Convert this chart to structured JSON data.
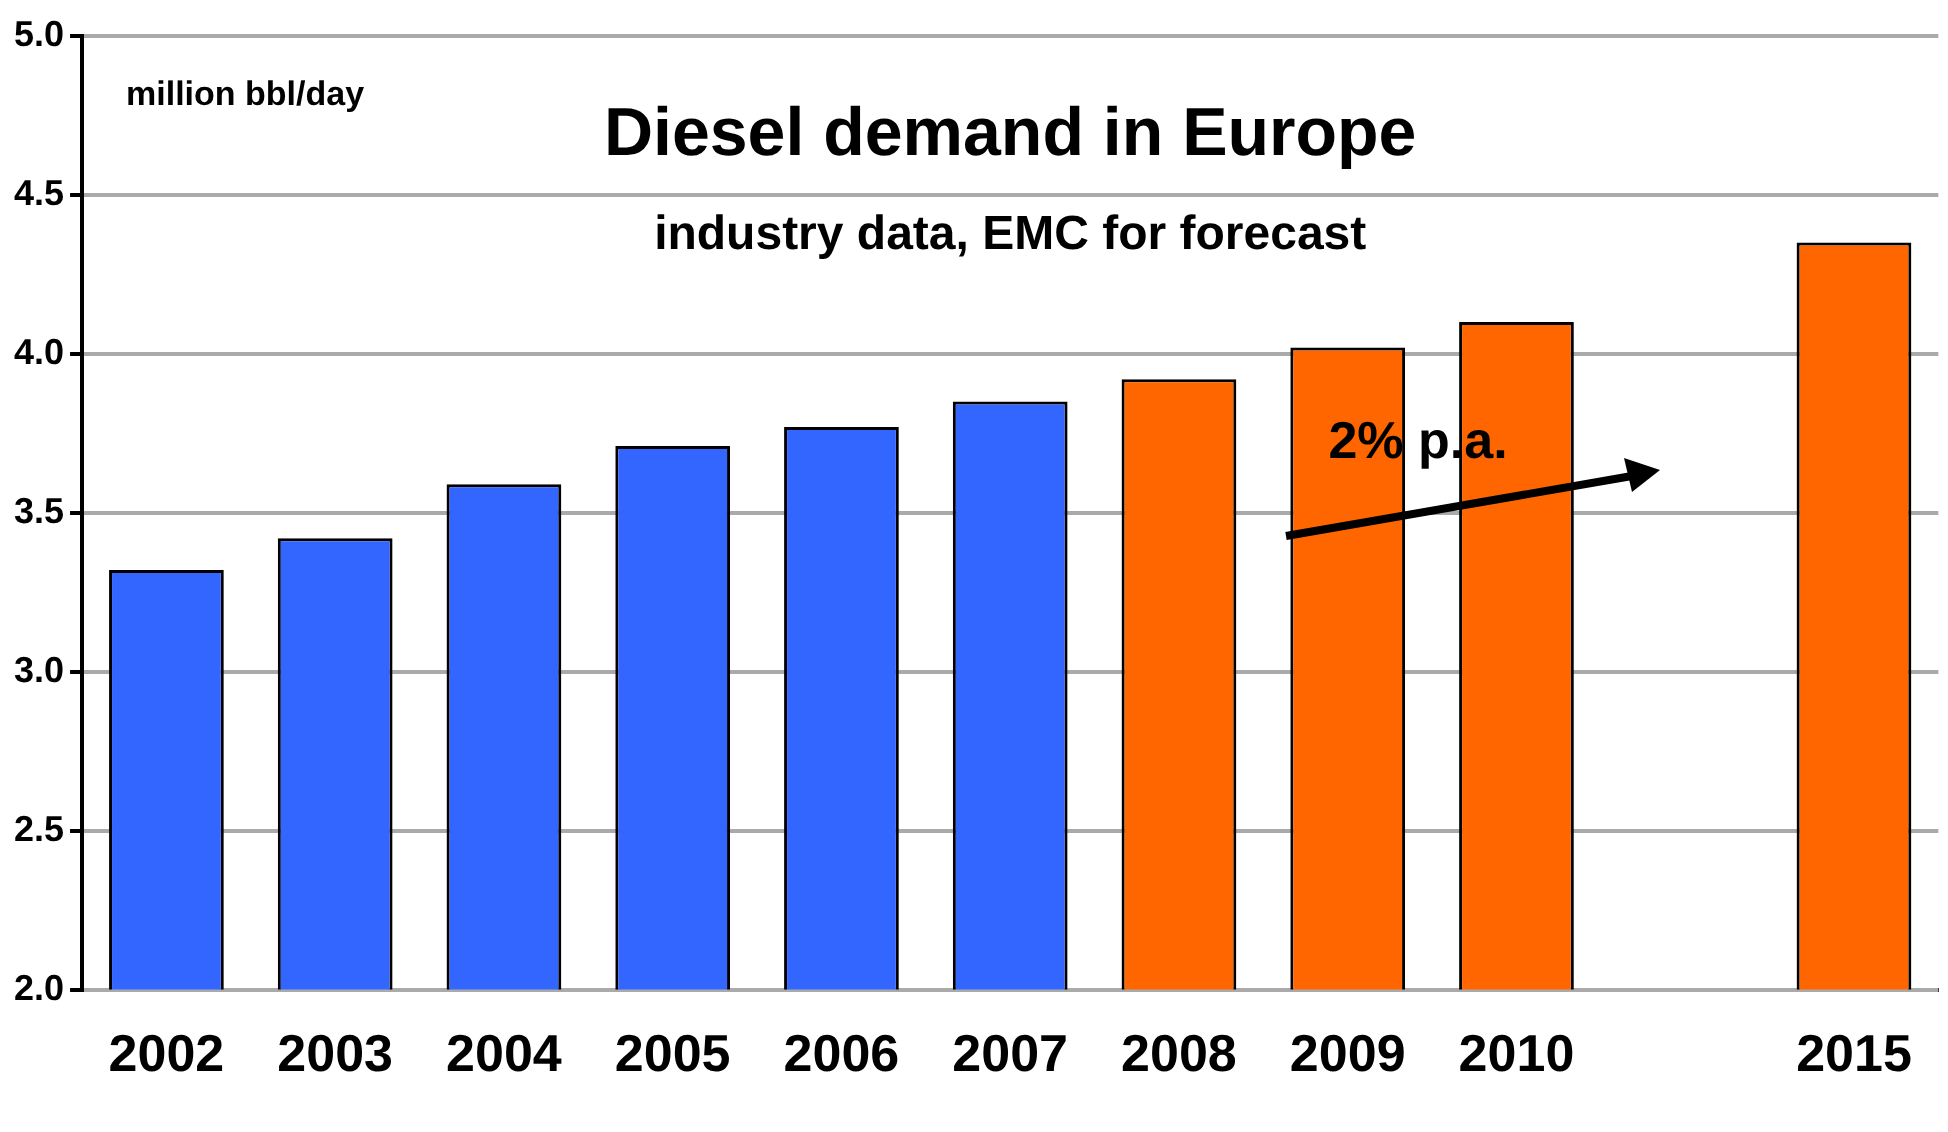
{
  "chart_data": {
    "type": "bar",
    "title": "Diesel demand in Europe",
    "subtitle": "industry data, EMC for forecast",
    "ylabel": "million bbl/day",
    "annotations": [
      "2% p.a."
    ],
    "categories": [
      "2002",
      "2003",
      "2004",
      "2005",
      "2006",
      "2007",
      "2008",
      "2009",
      "2010",
      null,
      "2015"
    ],
    "values": [
      3.32,
      3.42,
      3.59,
      3.71,
      3.77,
      3.85,
      3.92,
      4.02,
      4.1,
      null,
      4.35
    ],
    "colors": [
      "#3366ff",
      "#3366ff",
      "#3366ff",
      "#3366ff",
      "#3366ff",
      "#3366ff",
      "#ff6600",
      "#ff6600",
      "#ff6600",
      null,
      "#ff6600"
    ],
    "ylim": [
      2,
      5
    ],
    "yticks": [
      {
        "value": 2,
        "label": "2.0"
      },
      {
        "value": 2.5,
        "label": "2.5"
      },
      {
        "value": 3,
        "label": "3.0"
      },
      {
        "value": 3.5,
        "label": "3.5"
      },
      {
        "value": 4,
        "label": "4.0"
      },
      {
        "value": 4.5,
        "label": "4.5"
      },
      {
        "value": 5,
        "label": "5.0"
      }
    ],
    "grid": "y"
  }
}
